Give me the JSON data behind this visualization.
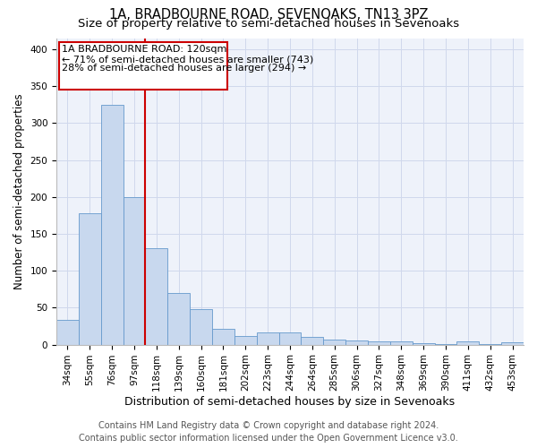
{
  "title1": "1A, BRADBOURNE ROAD, SEVENOAKS, TN13 3PZ",
  "title2": "Size of property relative to semi-detached houses in Sevenoaks",
  "xlabel": "Distribution of semi-detached houses by size in Sevenoaks",
  "ylabel": "Number of semi-detached properties",
  "categories": [
    "34sqm",
    "55sqm",
    "76sqm",
    "97sqm",
    "118sqm",
    "139sqm",
    "160sqm",
    "181sqm",
    "202sqm",
    "223sqm",
    "244sqm",
    "264sqm",
    "285sqm",
    "306sqm",
    "327sqm",
    "348sqm",
    "369sqm",
    "390sqm",
    "411sqm",
    "432sqm",
    "453sqm"
  ],
  "values": [
    33,
    178,
    325,
    200,
    130,
    70,
    48,
    21,
    12,
    17,
    17,
    10,
    7,
    6,
    4,
    4,
    2,
    1,
    4,
    1,
    3
  ],
  "bar_color": "#c8d8ee",
  "bar_edge_color": "#6699cc",
  "vline_position": 3.5,
  "annotation_line1": "1A BRADBOURNE ROAD: 120sqm",
  "annotation_line2": "← 71% of semi-detached houses are smaller (743)",
  "annotation_line3": "28% of semi-detached houses are larger (294) →",
  "vline_color": "#cc0000",
  "box_edge_color": "#cc0000",
  "ylim": [
    0,
    415
  ],
  "yticks": [
    0,
    50,
    100,
    150,
    200,
    250,
    300,
    350,
    400
  ],
  "footer1": "Contains HM Land Registry data © Crown copyright and database right 2024.",
  "footer2": "Contains public sector information licensed under the Open Government Licence v3.0.",
  "title1_fontsize": 10.5,
  "title2_fontsize": 9.5,
  "xlabel_fontsize": 9,
  "ylabel_fontsize": 8.5,
  "tick_fontsize": 7.5,
  "footer_fontsize": 7,
  "annotation_fontsize": 8,
  "bg_color": "#eef2fa",
  "grid_color": "#d0d8ec"
}
